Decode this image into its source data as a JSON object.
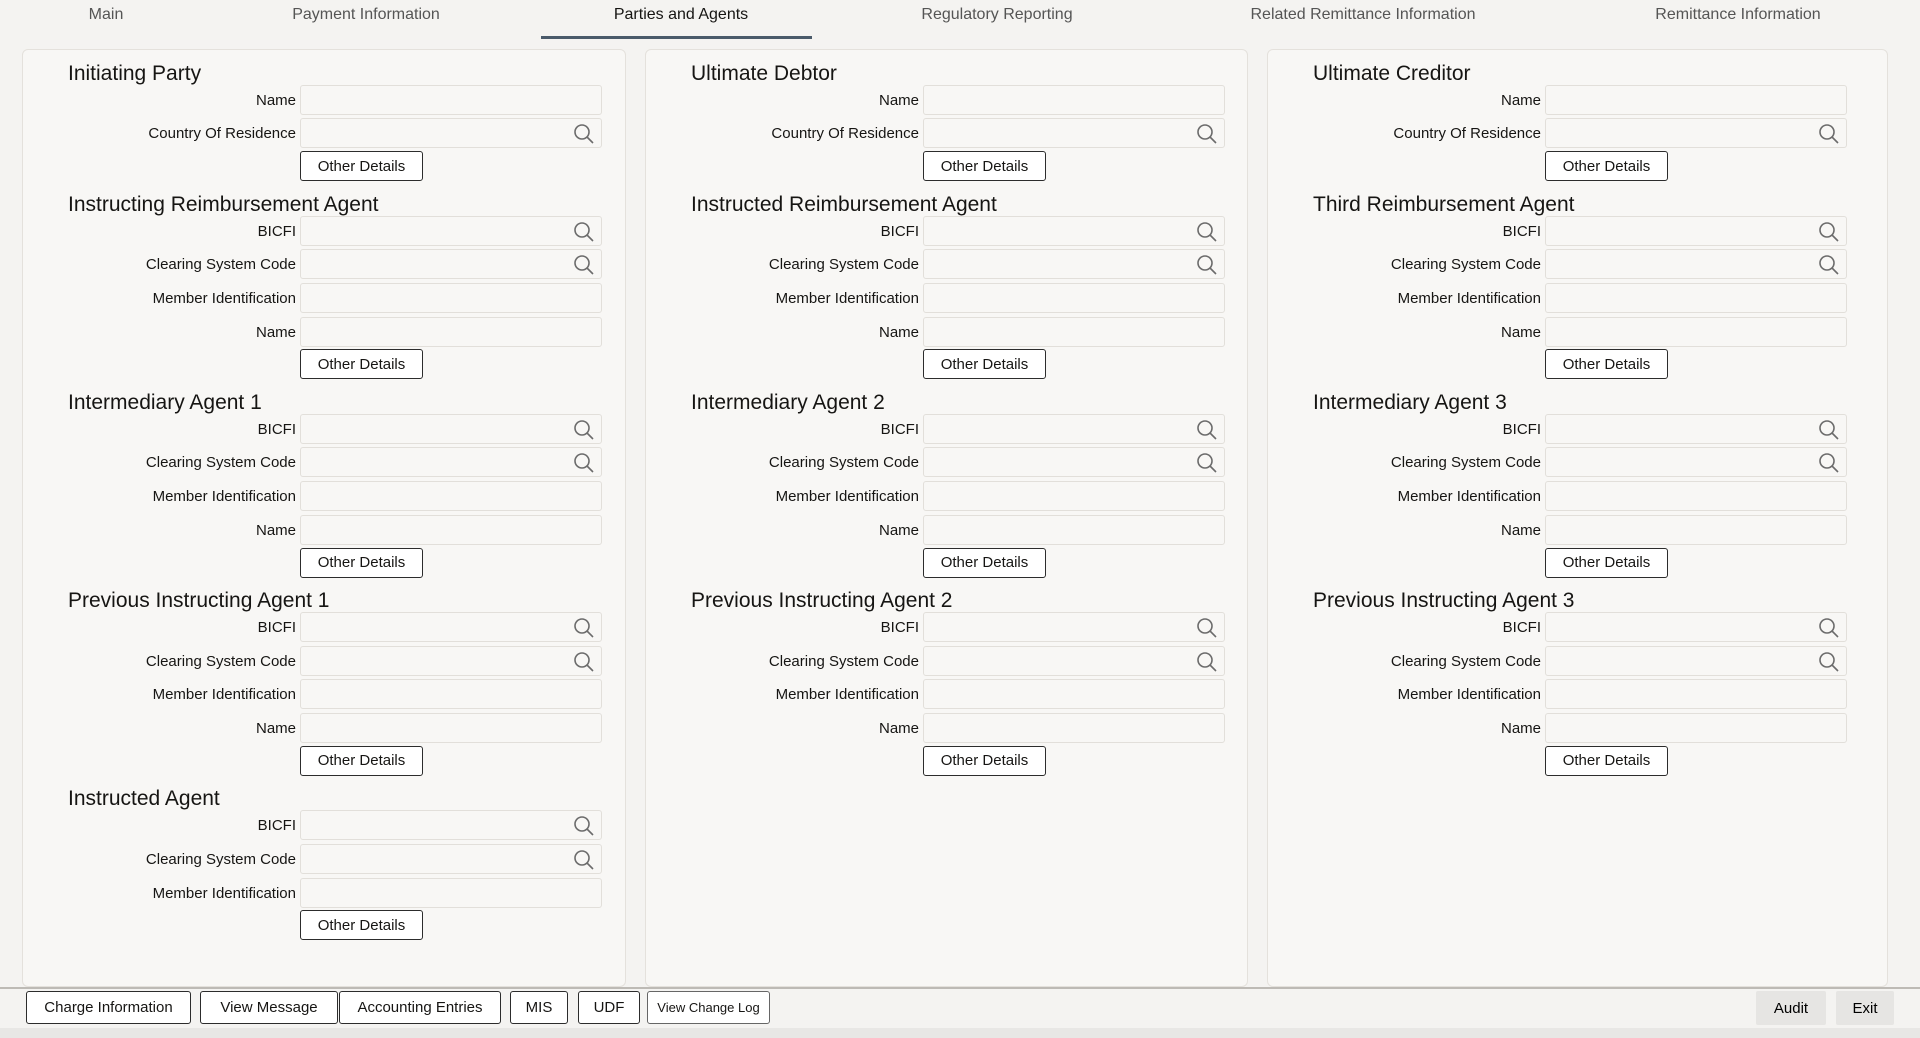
{
  "tabs": [
    {
      "label": "Main",
      "active": false
    },
    {
      "label": "Payment Information",
      "active": false
    },
    {
      "label": "Parties and Agents",
      "active": true
    },
    {
      "label": "Regulatory Reporting",
      "active": false
    },
    {
      "label": "Related Remittance Information",
      "active": false
    },
    {
      "label": "Remittance Information",
      "active": false
    }
  ],
  "columns": [
    {
      "sections": [
        {
          "title": "Initiating Party",
          "fields": [
            {
              "label": "Name",
              "lookup": false,
              "value": ""
            },
            {
              "label": "Country Of Residence",
              "lookup": true,
              "value": ""
            }
          ],
          "button": "Other Details"
        },
        {
          "title": "Instructing Reimbursement Agent",
          "fields": [
            {
              "label": "BICFI",
              "lookup": true,
              "value": ""
            },
            {
              "label": "Clearing System Code",
              "lookup": true,
              "value": ""
            },
            {
              "label": "Member Identification",
              "lookup": false,
              "value": ""
            },
            {
              "label": "Name",
              "lookup": false,
              "value": ""
            }
          ],
          "button": "Other Details"
        },
        {
          "title": "Intermediary Agent 1",
          "fields": [
            {
              "label": "BICFI",
              "lookup": true,
              "value": ""
            },
            {
              "label": "Clearing System Code",
              "lookup": true,
              "value": ""
            },
            {
              "label": "Member Identification",
              "lookup": false,
              "value": ""
            },
            {
              "label": "Name",
              "lookup": false,
              "value": ""
            }
          ],
          "button": "Other Details"
        },
        {
          "title": "Previous Instructing Agent 1",
          "fields": [
            {
              "label": "BICFI",
              "lookup": true,
              "value": ""
            },
            {
              "label": "Clearing System Code",
              "lookup": true,
              "value": ""
            },
            {
              "label": "Member Identification",
              "lookup": false,
              "value": ""
            },
            {
              "label": "Name",
              "lookup": false,
              "value": ""
            }
          ],
          "button": "Other Details"
        },
        {
          "title": "Instructed Agent",
          "fields": [
            {
              "label": "BICFI",
              "lookup": true,
              "value": ""
            },
            {
              "label": "Clearing System Code",
              "lookup": true,
              "value": ""
            },
            {
              "label": "Member Identification",
              "lookup": false,
              "value": ""
            }
          ],
          "button": "Other Details"
        }
      ]
    },
    {
      "sections": [
        {
          "title": "Ultimate Debtor",
          "fields": [
            {
              "label": "Name",
              "lookup": false,
              "value": ""
            },
            {
              "label": "Country Of Residence",
              "lookup": true,
              "value": ""
            }
          ],
          "button": "Other Details"
        },
        {
          "title": "Instructed Reimbursement Agent",
          "fields": [
            {
              "label": "BICFI",
              "lookup": true,
              "value": ""
            },
            {
              "label": "Clearing System Code",
              "lookup": true,
              "value": ""
            },
            {
              "label": "Member Identification",
              "lookup": false,
              "value": ""
            },
            {
              "label": "Name",
              "lookup": false,
              "value": ""
            }
          ],
          "button": "Other Details"
        },
        {
          "title": "Intermediary Agent 2",
          "fields": [
            {
              "label": "BICFI",
              "lookup": true,
              "value": ""
            },
            {
              "label": "Clearing System Code",
              "lookup": true,
              "value": ""
            },
            {
              "label": "Member Identification",
              "lookup": false,
              "value": ""
            },
            {
              "label": "Name",
              "lookup": false,
              "value": ""
            }
          ],
          "button": "Other Details"
        },
        {
          "title": "Previous Instructing Agent 2",
          "fields": [
            {
              "label": "BICFI",
              "lookup": true,
              "value": ""
            },
            {
              "label": "Clearing System Code",
              "lookup": true,
              "value": ""
            },
            {
              "label": "Member Identification",
              "lookup": false,
              "value": ""
            },
            {
              "label": "Name",
              "lookup": false,
              "value": ""
            }
          ],
          "button": "Other Details"
        }
      ]
    },
    {
      "sections": [
        {
          "title": "Ultimate Creditor",
          "fields": [
            {
              "label": "Name",
              "lookup": false,
              "value": ""
            },
            {
              "label": "Country Of Residence",
              "lookup": true,
              "value": ""
            }
          ],
          "button": "Other Details"
        },
        {
          "title": "Third Reimbursement Agent",
          "fields": [
            {
              "label": "BICFI",
              "lookup": true,
              "value": ""
            },
            {
              "label": "Clearing System Code",
              "lookup": true,
              "value": ""
            },
            {
              "label": "Member Identification",
              "lookup": false,
              "value": ""
            },
            {
              "label": "Name",
              "lookup": false,
              "value": ""
            }
          ],
          "button": "Other Details"
        },
        {
          "title": "Intermediary Agent 3",
          "fields": [
            {
              "label": "BICFI",
              "lookup": true,
              "value": ""
            },
            {
              "label": "Clearing System Code",
              "lookup": true,
              "value": ""
            },
            {
              "label": "Member Identification",
              "lookup": false,
              "value": ""
            },
            {
              "label": "Name",
              "lookup": false,
              "value": ""
            }
          ],
          "button": "Other Details"
        },
        {
          "title": "Previous Instructing Agent 3",
          "fields": [
            {
              "label": "BICFI",
              "lookup": true,
              "value": ""
            },
            {
              "label": "Clearing System Code",
              "lookup": true,
              "value": ""
            },
            {
              "label": "Member Identification",
              "lookup": false,
              "value": ""
            },
            {
              "label": "Name",
              "lookup": false,
              "value": ""
            }
          ],
          "button": "Other Details"
        }
      ]
    }
  ],
  "footer": {
    "left_buttons": [
      "Charge Information",
      "View Message",
      "Accounting Entries",
      "MIS",
      "UDF",
      "View Change Log"
    ],
    "audit": "Audit",
    "exit": "Exit"
  }
}
